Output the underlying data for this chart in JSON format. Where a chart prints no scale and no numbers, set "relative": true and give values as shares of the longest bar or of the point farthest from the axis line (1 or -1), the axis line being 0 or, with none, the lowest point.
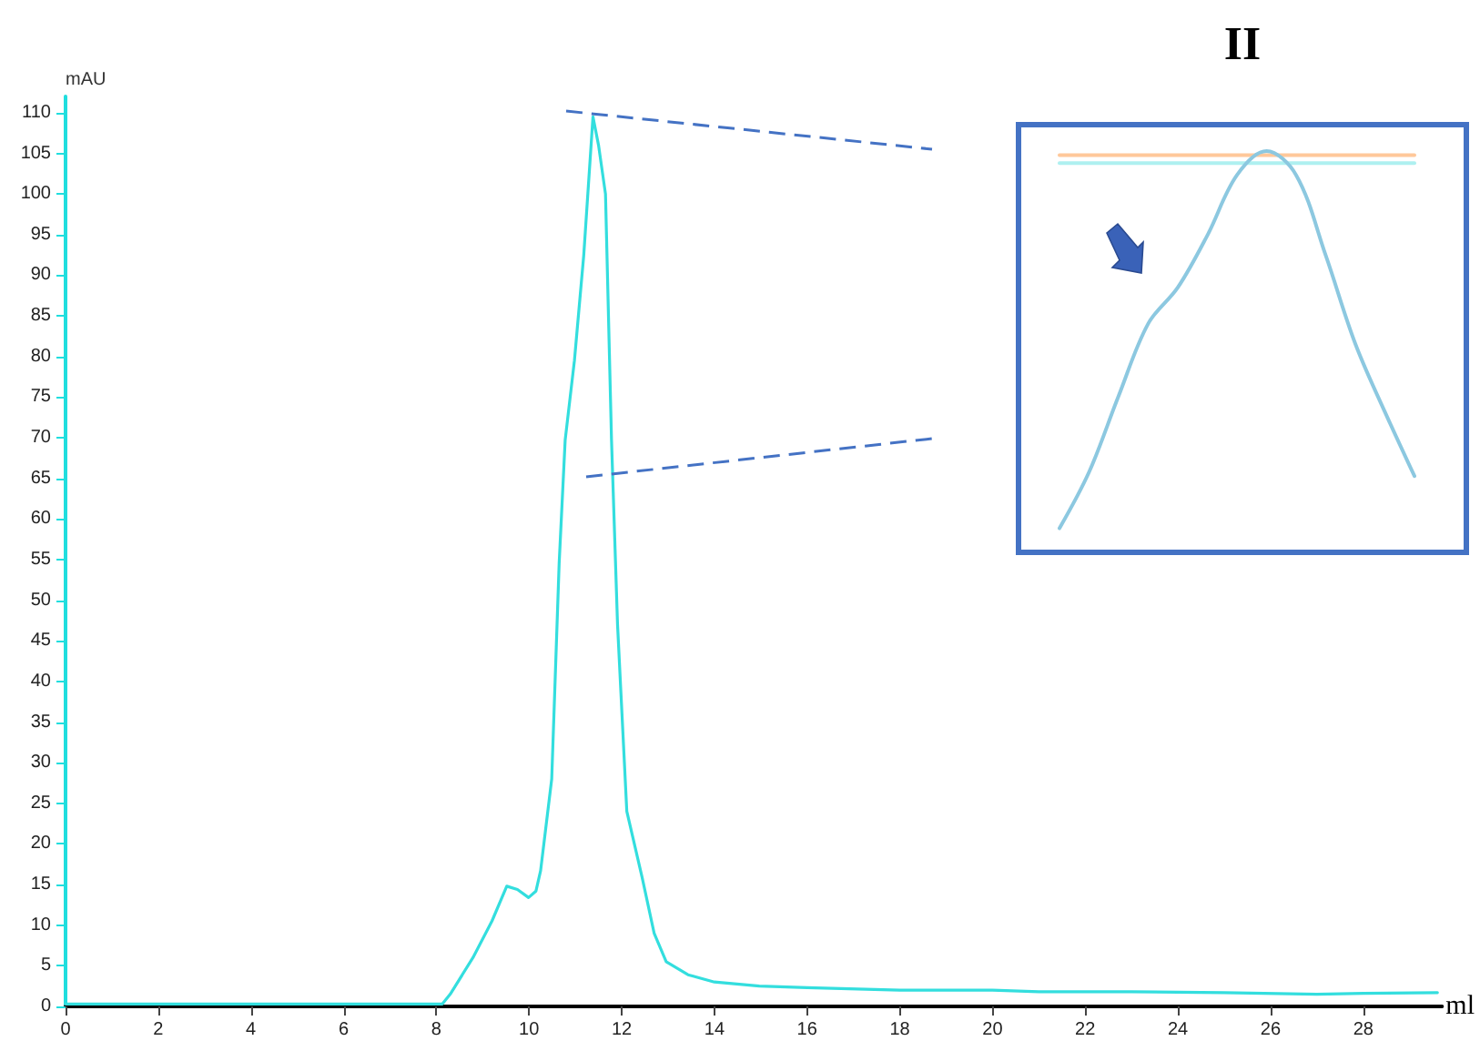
{
  "chart_data": [
    {
      "type": "line",
      "xlabel": "ml",
      "ylabel": "mAU",
      "color": "#33dede",
      "x": [
        0,
        1,
        2,
        3,
        4,
        5,
        6,
        7,
        8,
        8.13,
        8.3,
        8.79,
        9.2,
        9.52,
        9.75,
        9.99,
        10.15,
        10.25,
        10.49,
        10.65,
        10.78,
        10.98,
        11.18,
        11.38,
        11.5,
        11.65,
        11.78,
        11.91,
        12.11,
        12.44,
        12.7,
        12.96,
        13.43,
        14,
        14.97,
        16,
        18,
        20,
        21,
        23,
        25,
        27,
        28,
        29.6
      ],
      "values": [
        0.3,
        0.3,
        0.3,
        0.3,
        0.3,
        0.3,
        0.3,
        0.3,
        0.3,
        0.3,
        1.5,
        6,
        10.5,
        14.8,
        14.4,
        13.4,
        14.2,
        16.7,
        28,
        54.5,
        69.7,
        79.5,
        92.4,
        109.5,
        106,
        100,
        69.7,
        47,
        24,
        15.9,
        9,
        5.5,
        3.9,
        3,
        2.5,
        2.3,
        2,
        2,
        1.8,
        1.8,
        1.7,
        1.5,
        1.6,
        1.7
      ],
      "xlim": [
        0,
        29.7
      ],
      "ylim": [
        0,
        112
      ],
      "xticks": [
        0,
        2,
        4,
        6,
        8,
        10,
        12,
        14,
        16,
        18,
        20,
        22,
        24,
        26,
        28
      ],
      "yticks": [
        0,
        5,
        10,
        15,
        20,
        25,
        30,
        35,
        40,
        45,
        50,
        55,
        60,
        65,
        70,
        75,
        80,
        85,
        90,
        95,
        100,
        105,
        110
      ]
    },
    {
      "type": "line",
      "title": "II",
      "relative": true,
      "categories": [
        null,
        null,
        null,
        null,
        null,
        null,
        null,
        null,
        null,
        null,
        null,
        null,
        null
      ],
      "series": [
        {
          "color": "#ffc89a",
          "values": [
            0.99,
            0.99,
            0.99,
            0.99,
            0.99,
            0.99,
            0.99,
            0.99,
            0.99,
            0.99,
            0.99,
            0.99,
            0.99
          ]
        },
        {
          "color": "#aef0f0",
          "values": [
            0.97,
            0.97,
            0.97,
            0.97,
            0.97,
            0.97,
            0.97,
            0.97,
            0.97,
            0.97,
            0.97,
            0.97,
            0.97
          ]
        },
        {
          "color": "#8cc8e0",
          "values": [
            0.06,
            0.2,
            0.39,
            0.57,
            0.66,
            0.79,
            0.94,
            1,
            0.94,
            0.74,
            0.52,
            0.35,
            0.19
          ]
        }
      ]
    }
  ]
}
